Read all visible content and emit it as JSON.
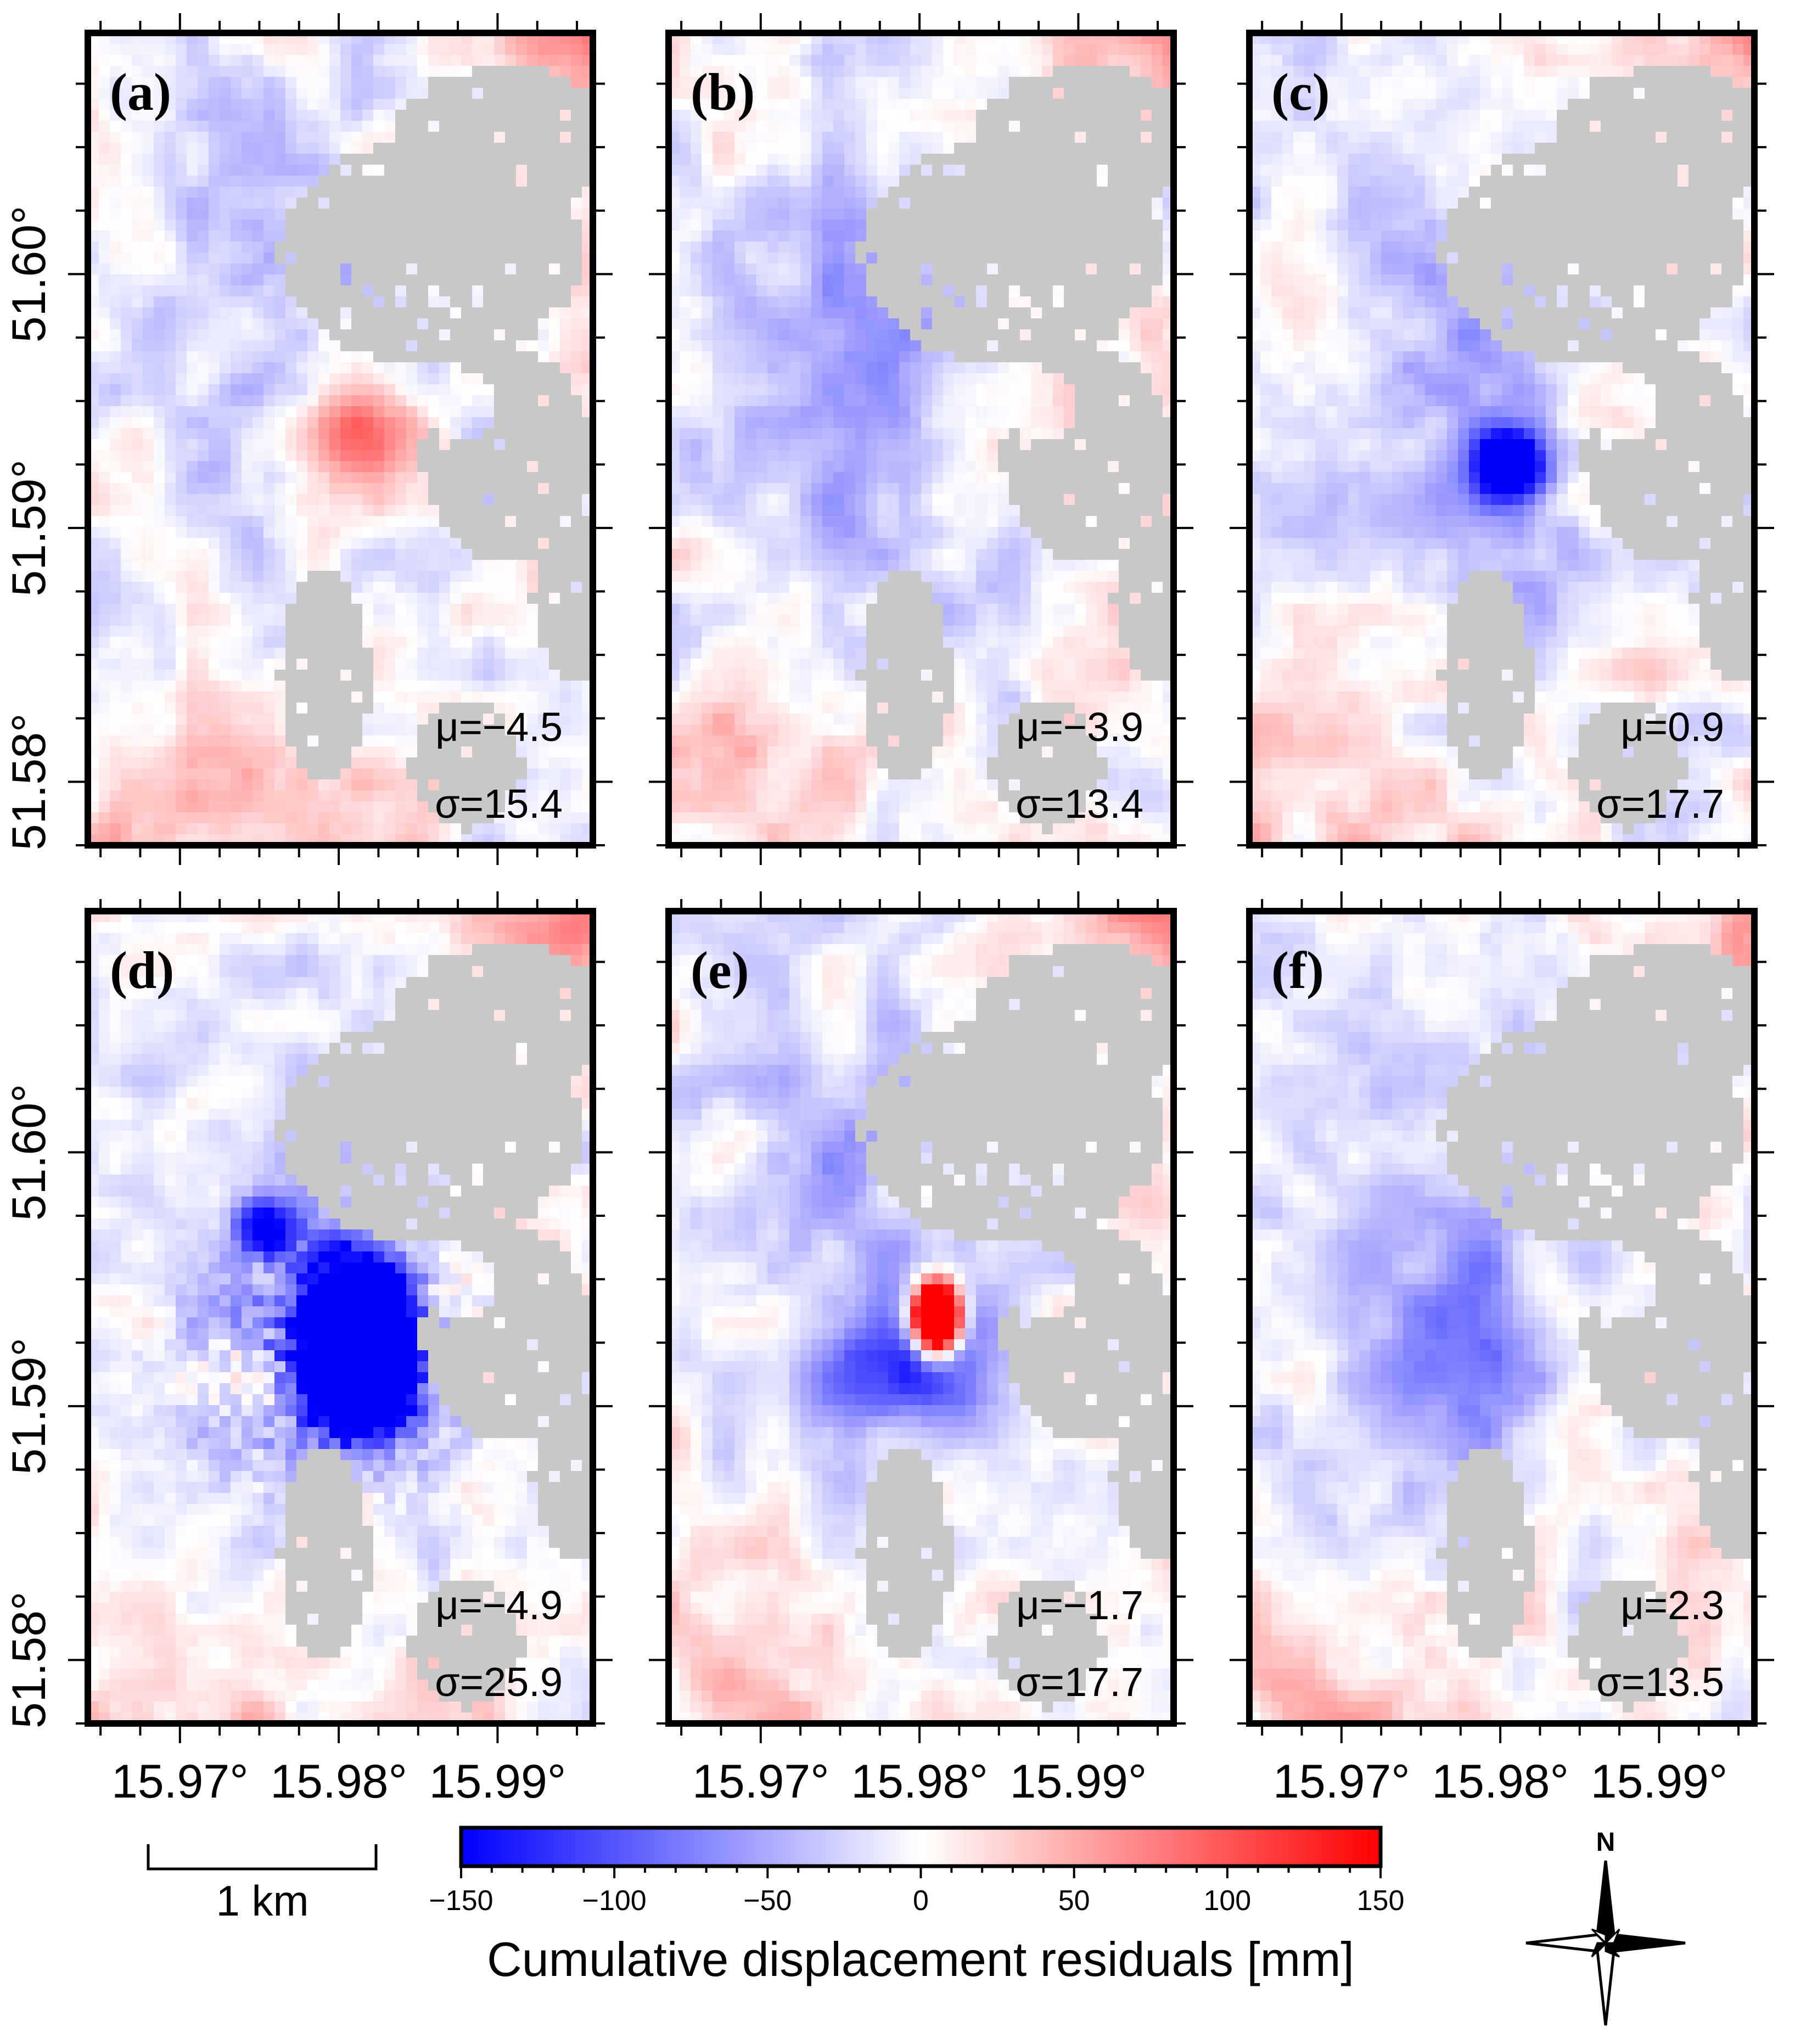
{
  "chart_data": {
    "type": "heatmap",
    "title": "",
    "panels": [
      {
        "label": "(a)",
        "mu": "μ=−4.5",
        "sigma": "σ=15.4",
        "anomaly": "red-diffuse-center"
      },
      {
        "label": "(b)",
        "mu": "μ=−3.9",
        "sigma": "σ=13.4",
        "anomaly": "weak-blue"
      },
      {
        "label": "(c)",
        "mu": "μ=0.9",
        "sigma": "σ=17.7",
        "anomaly": "blue-spot"
      },
      {
        "label": "(d)",
        "mu": "μ=−4.9",
        "sigma": "σ=25.9",
        "anomaly": "strong-blue-blob"
      },
      {
        "label": "(e)",
        "mu": "μ=−1.7",
        "sigma": "σ=17.7",
        "anomaly": "red-spot-blue-halo"
      },
      {
        "label": "(f)",
        "mu": "μ=2.3",
        "sigma": "σ=13.5",
        "anomaly": "weak-blue"
      }
    ],
    "y_ticks": [
      {
        "value": 51.58,
        "label": "51.58°"
      },
      {
        "value": 51.59,
        "label": "51.59°"
      },
      {
        "value": 51.6,
        "label": "51.60°"
      }
    ],
    "x_ticks": [
      {
        "value": 15.97,
        "label": "15.97°"
      },
      {
        "value": 15.98,
        "label": "15.98°"
      },
      {
        "value": 15.99,
        "label": "15.99°"
      }
    ],
    "xlim": [
      15.9642,
      15.996
    ],
    "ylim": [
      51.5775,
      51.6095
    ],
    "colorbar": {
      "label": "Cumulative displacement residuals [mm]",
      "range": [
        -150,
        150
      ],
      "ticks": [
        {
          "value": -150,
          "label": "−150"
        },
        {
          "value": -100,
          "label": "−100"
        },
        {
          "value": -50,
          "label": "−50"
        },
        {
          "value": 0,
          "label": "0"
        },
        {
          "value": 50,
          "label": "50"
        },
        {
          "value": 100,
          "label": "100"
        },
        {
          "value": 150,
          "label": "150"
        }
      ],
      "colors": {
        "low": "#0000ff",
        "mid": "#ffffff",
        "high": "#ff0000"
      }
    },
    "no_data_color": "#c8c8c8",
    "scale_bar": {
      "label": "1 km"
    },
    "north_arrow": {
      "label": "N"
    }
  }
}
